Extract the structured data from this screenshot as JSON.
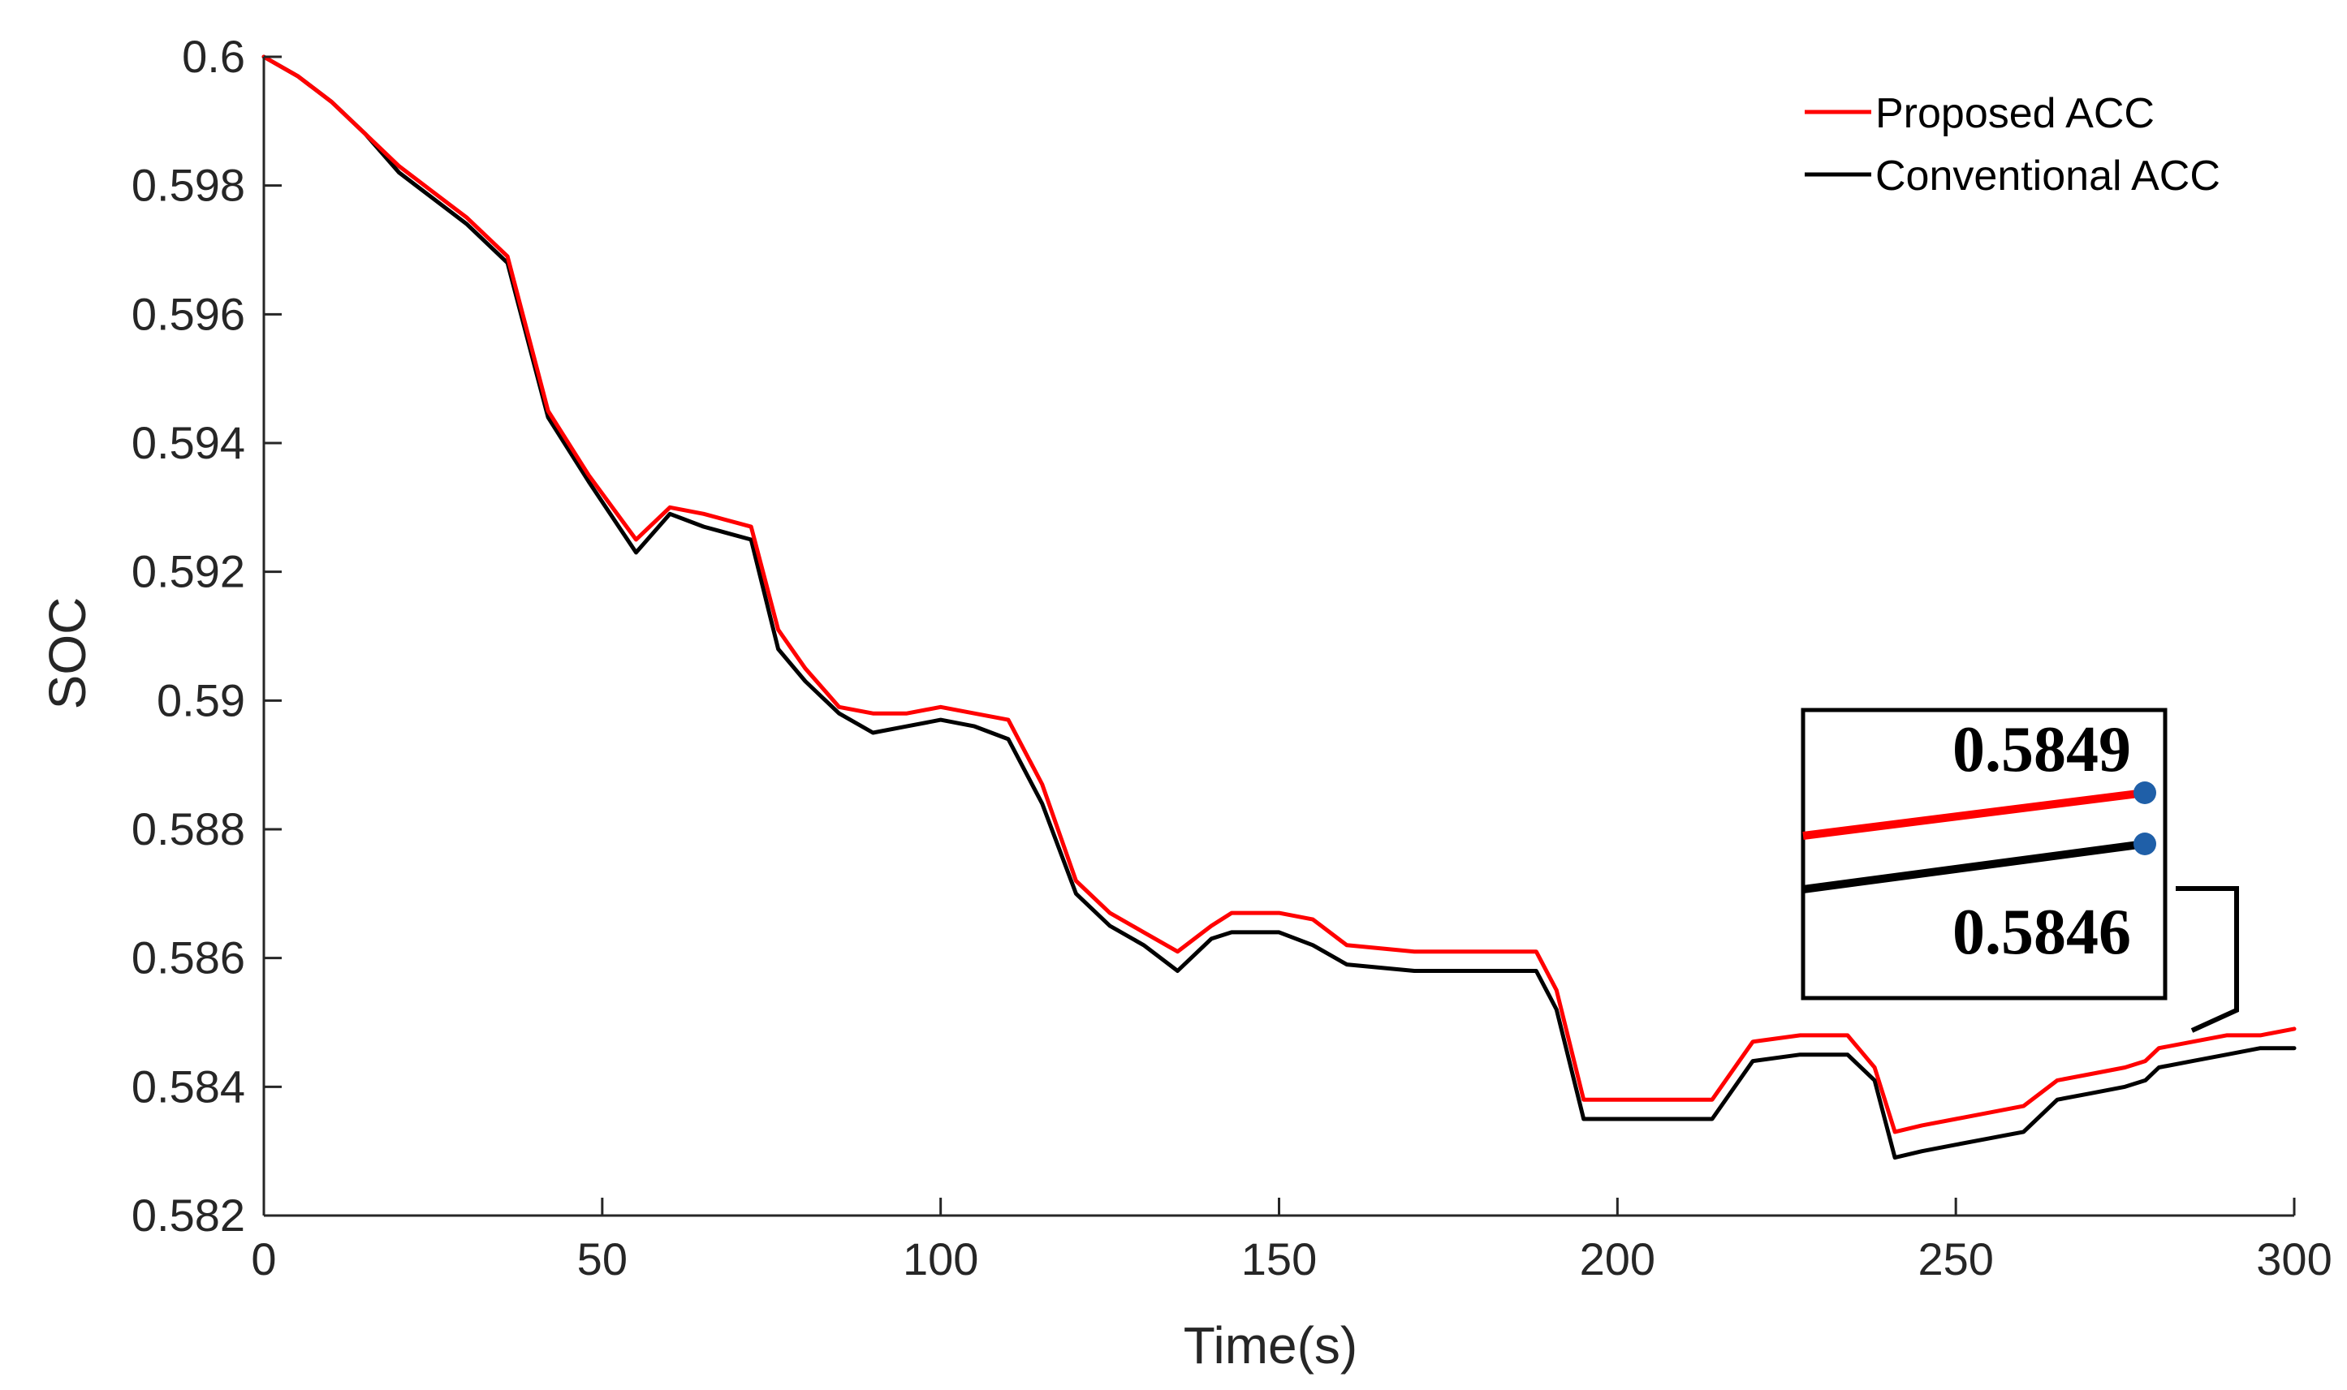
{
  "chart_data": {
    "type": "line",
    "title": "",
    "xlabel": "Time(s)",
    "ylabel": "SOC",
    "xlim": [
      0,
      300
    ],
    "ylim": [
      0.582,
      0.6
    ],
    "xticks": [
      0,
      50,
      100,
      150,
      200,
      250,
      300
    ],
    "xtick_labels": [
      "0",
      "50",
      "100",
      "150",
      "200",
      "250",
      "300"
    ],
    "yticks": [
      0.582,
      0.584,
      0.586,
      0.588,
      0.59,
      0.592,
      0.594,
      0.596,
      0.598,
      0.6
    ],
    "ytick_labels": [
      "0.582",
      "0.584",
      "0.586",
      "0.588",
      "0.59",
      "0.592",
      "0.594",
      "0.596",
      "0.598",
      "0.6"
    ],
    "grid": false,
    "legend_position": "top-right",
    "series": [
      {
        "name": "Proposed ACC",
        "color": "#ff0000",
        "x": [
          0,
          5,
          10,
          15,
          20,
          25,
          30,
          36,
          42,
          48,
          55,
          60,
          65,
          72,
          76,
          80,
          85,
          90,
          95,
          100,
          105,
          110,
          115,
          120,
          125,
          130,
          135,
          140,
          143,
          150,
          155,
          160,
          170,
          180,
          188,
          191,
          195,
          200,
          205,
          210,
          214,
          220,
          227,
          234,
          238,
          241,
          245,
          250,
          255,
          260,
          265,
          270,
          275,
          278,
          280,
          285,
          290,
          295,
          300
        ],
        "y": [
          0.6,
          0.5997,
          0.5993,
          0.5988,
          0.5983,
          0.5979,
          0.5975,
          0.5969,
          0.5945,
          0.5935,
          0.5925,
          0.593,
          0.5929,
          0.5927,
          0.5911,
          0.5905,
          0.5899,
          0.5898,
          0.5898,
          0.5899,
          0.5898,
          0.5897,
          0.5887,
          0.5872,
          0.5867,
          0.5864,
          0.5861,
          0.5865,
          0.5867,
          0.5867,
          0.5866,
          0.5862,
          0.5861,
          0.5861,
          0.5861,
          0.5855,
          0.5838,
          0.5838,
          0.5838,
          0.5838,
          0.5838,
          0.5847,
          0.5848,
          0.5848,
          0.5843,
          0.5833,
          0.5834,
          0.5835,
          0.5836,
          0.5837,
          0.5841,
          0.5842,
          0.5843,
          0.5844,
          0.5846,
          0.5847,
          0.5848,
          0.5848,
          0.5849
        ]
      },
      {
        "name": "Conventional ACC",
        "color": "#000000",
        "x": [
          0,
          5,
          10,
          15,
          20,
          25,
          30,
          36,
          42,
          48,
          55,
          60,
          65,
          72,
          76,
          80,
          85,
          90,
          95,
          100,
          105,
          110,
          115,
          120,
          125,
          130,
          135,
          140,
          143,
          150,
          155,
          160,
          170,
          180,
          188,
          191,
          195,
          200,
          205,
          210,
          214,
          220,
          227,
          234,
          238,
          241,
          245,
          250,
          255,
          260,
          265,
          270,
          275,
          278,
          280,
          285,
          290,
          295,
          300
        ],
        "y": [
          0.6,
          0.5997,
          0.5993,
          0.5988,
          0.5982,
          0.5978,
          0.5974,
          0.5968,
          0.5944,
          0.5934,
          0.5923,
          0.5929,
          0.5927,
          0.5925,
          0.5908,
          0.5903,
          0.5898,
          0.5895,
          0.5896,
          0.5897,
          0.5896,
          0.5894,
          0.5884,
          0.587,
          0.5865,
          0.5862,
          0.5858,
          0.5863,
          0.5864,
          0.5864,
          0.5862,
          0.5859,
          0.5858,
          0.5858,
          0.5858,
          0.5852,
          0.5835,
          0.5835,
          0.5835,
          0.5835,
          0.5835,
          0.5844,
          0.5845,
          0.5845,
          0.5841,
          0.5829,
          0.583,
          0.5831,
          0.5832,
          0.5833,
          0.5838,
          0.5839,
          0.584,
          0.5841,
          0.5843,
          0.5844,
          0.5845,
          0.5846,
          0.5846
        ]
      }
    ],
    "annotation": {
      "type": "zoom-callout",
      "target_x": 300,
      "values": [
        "0.5849",
        "0.5846"
      ]
    }
  }
}
